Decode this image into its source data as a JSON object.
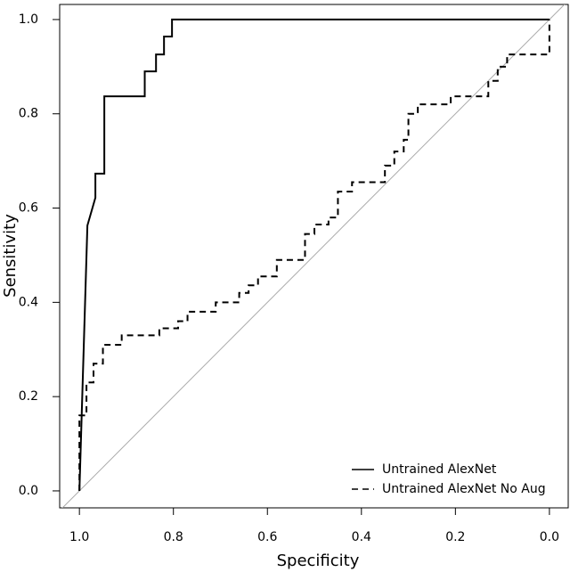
{
  "chart_data": {
    "type": "line",
    "xlabel": "Specificity",
    "ylabel": "Sensitivity",
    "xlim": [
      1.042,
      -0.04
    ],
    "ylim": [
      -0.036,
      1.032
    ],
    "xticks": [
      {
        "value": 1,
        "label": "1.0"
      },
      0.8,
      0.6,
      0.4,
      0.2,
      {
        "value": 0,
        "label": "0.0"
      }
    ],
    "yticks": [
      {
        "value": 0,
        "label": "0.0"
      },
      0.2,
      0.4,
      0.6,
      0.8,
      {
        "value": 1,
        "label": "1.0"
      }
    ],
    "legend": "lower right",
    "series": [
      {
        "name": "Untrained AlexNet",
        "color": "#000000",
        "dash": "solid",
        "x": [
          1,
          0.983,
          0.966,
          0.966,
          0.947,
          0.947,
          0.861,
          0.861,
          0.837,
          0.837,
          0.82,
          0.82,
          0.803,
          0.803,
          0
        ],
        "values": [
          0,
          0.563,
          0.622,
          0.673,
          0.673,
          0.837,
          0.837,
          0.89,
          0.89,
          0.926,
          0.926,
          0.964,
          0.964,
          1,
          1
        ]
      },
      {
        "name": "Untrained AlexNet No Aug",
        "color": "#000000",
        "dash": "dashed",
        "x": [
          1,
          1,
          0.985,
          0.985,
          0.97,
          0.97,
          0.95,
          0.95,
          0.91,
          0.91,
          0.83,
          0.83,
          0.79,
          0.79,
          0.77,
          0.77,
          0.71,
          0.71,
          0.66,
          0.66,
          0.64,
          0.64,
          0.62,
          0.62,
          0.58,
          0.58,
          0.52,
          0.52,
          0.5,
          0.5,
          0.47,
          0.47,
          0.45,
          0.45,
          0.42,
          0.42,
          0.35,
          0.35,
          0.33,
          0.33,
          0.31,
          0.31,
          0.3,
          0.3,
          0.28,
          0.28,
          0.21,
          0.21,
          0.13,
          0.13,
          0.11,
          0.11,
          0.09,
          0.09,
          0,
          0
        ],
        "values": [
          0,
          0.16,
          0.16,
          0.23,
          0.23,
          0.27,
          0.27,
          0.31,
          0.31,
          0.33,
          0.33,
          0.345,
          0.345,
          0.36,
          0.36,
          0.38,
          0.38,
          0.4,
          0.4,
          0.42,
          0.42,
          0.436,
          0.436,
          0.455,
          0.455,
          0.49,
          0.49,
          0.545,
          0.545,
          0.565,
          0.565,
          0.58,
          0.58,
          0.635,
          0.635,
          0.655,
          0.655,
          0.69,
          0.69,
          0.72,
          0.72,
          0.745,
          0.745,
          0.8,
          0.8,
          0.82,
          0.82,
          0.837,
          0.837,
          0.87,
          0.87,
          0.9,
          0.9,
          0.926,
          0.926,
          1
        ]
      }
    ]
  }
}
